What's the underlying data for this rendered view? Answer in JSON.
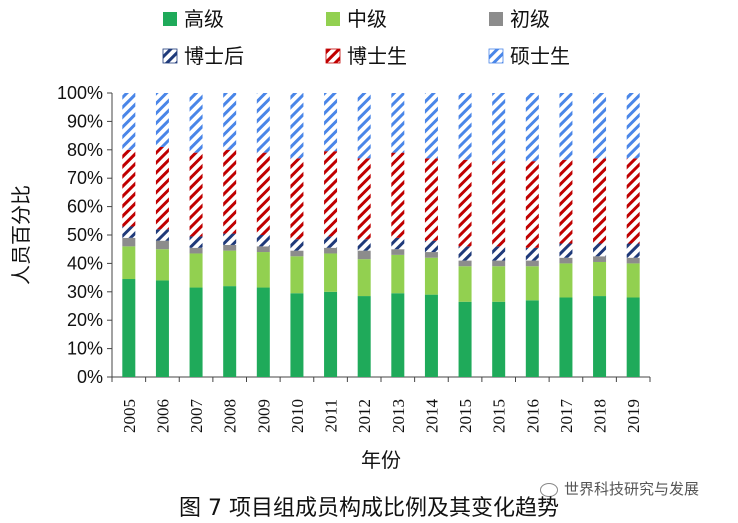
{
  "caption": "图 7 项目组成员构成比例及其变化趋势",
  "watermark": "世界科技研究与发展",
  "chart_data": {
    "type": "bar",
    "stacked": true,
    "xlabel": "年份",
    "ylabel": "人员百分比",
    "ylim": [
      0,
      100
    ],
    "yticks": [
      "0%",
      "10%",
      "20%",
      "30%",
      "40%",
      "50%",
      "60%",
      "70%",
      "80%",
      "90%",
      "100%"
    ],
    "grid": false,
    "legend_position": "top",
    "categories": [
      "2005",
      "2006",
      "2007",
      "2008",
      "2009",
      "2010",
      "2011",
      "2012",
      "2013",
      "2014",
      "2015",
      "2015",
      "2016",
      "2017",
      "2018",
      "2019"
    ],
    "series": [
      {
        "name": "高级",
        "color": "#1faa5a",
        "pattern": "solid",
        "values": [
          34.5,
          34,
          31.5,
          32,
          31.5,
          29.5,
          30,
          28.5,
          29.5,
          29,
          26.5,
          26.5,
          27,
          28,
          28.5,
          28
        ]
      },
      {
        "name": "中级",
        "color": "#92d050",
        "pattern": "solid",
        "values": [
          11.5,
          11,
          12,
          12.5,
          12.5,
          13,
          13.5,
          13,
          13.5,
          13,
          12.5,
          12.5,
          12,
          12,
          12,
          12
        ]
      },
      {
        "name": "初级",
        "color": "#8c8c8c",
        "pattern": "solid",
        "values": [
          3,
          3,
          2,
          2,
          2,
          2,
          2,
          3,
          2,
          2,
          2,
          2,
          2,
          2,
          2,
          2
        ]
      },
      {
        "name": "博士后",
        "color": "#1f3a7a",
        "pattern": "hatch",
        "values": [
          4,
          4,
          4,
          4,
          4,
          4,
          4,
          4,
          4,
          4,
          5,
          5,
          4.5,
          5,
          4.5,
          5
        ]
      },
      {
        "name": "博士生",
        "color": "#c00000",
        "pattern": "hatch",
        "values": [
          27,
          29,
          29.5,
          29.5,
          29,
          28.5,
          30,
          28.5,
          30,
          29,
          30.5,
          30,
          30.5,
          29.5,
          30,
          30
        ]
      },
      {
        "name": "硕士生",
        "color": "#4a86e8",
        "pattern": "hatch",
        "values": [
          20,
          19,
          21,
          20,
          21,
          23,
          20.5,
          23,
          21,
          23,
          23.5,
          24,
          24,
          23.5,
          23,
          23
        ]
      }
    ]
  }
}
